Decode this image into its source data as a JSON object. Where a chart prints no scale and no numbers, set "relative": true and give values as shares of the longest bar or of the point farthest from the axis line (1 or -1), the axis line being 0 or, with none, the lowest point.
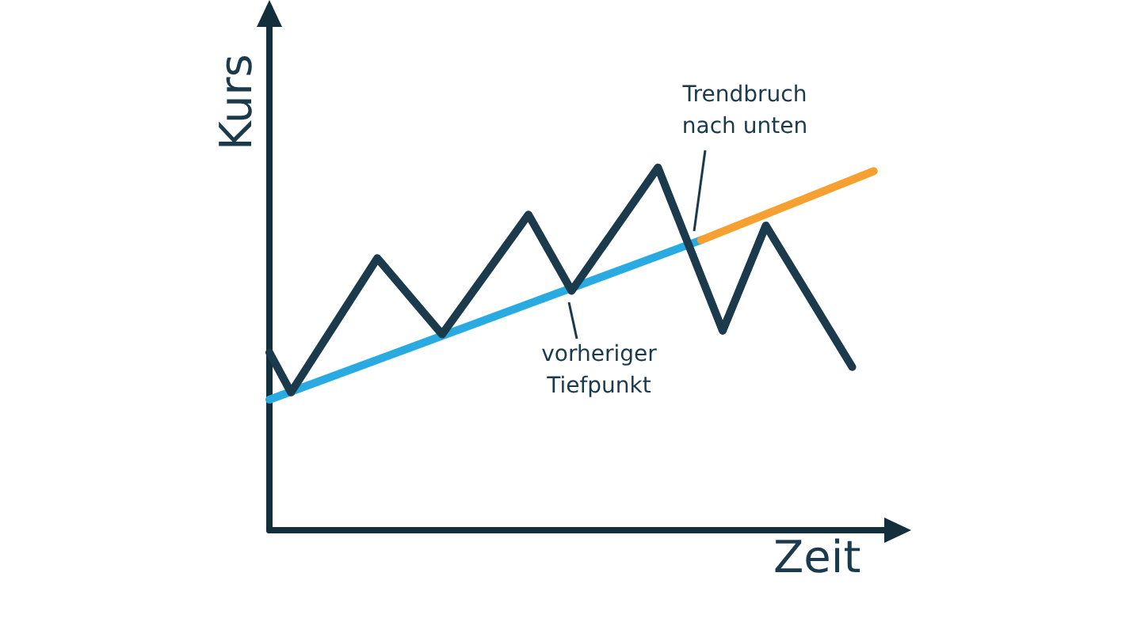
{
  "chart_data": {
    "type": "line",
    "relative": true,
    "xlabel": "Zeit",
    "ylabel": "Kurs",
    "grid": false,
    "marker": "none",
    "line_style": "solid",
    "categories": [
      null,
      null,
      null,
      null,
      null,
      null,
      null,
      null,
      null,
      null,
      null,
      null,
      null,
      null,
      null,
      null,
      null,
      null,
      null,
      null,
      null,
      null,
      null,
      null,
      null,
      null,
      null,
      null,
      null,
      null
    ],
    "series": [
      {
        "color": "#29abe2",
        "values": [
          0.36,
          null,
          null,
          null,
          null,
          null,
          null,
          null,
          null,
          null,
          null,
          null,
          null,
          null,
          null,
          null,
          null,
          null,
          null,
          null,
          0.8,
          null,
          null,
          null,
          null,
          null,
          null,
          null,
          null,
          null
        ]
      },
      {
        "color": "#f5a031",
        "values": [
          null,
          null,
          null,
          null,
          null,
          null,
          null,
          null,
          null,
          null,
          null,
          null,
          null,
          null,
          null,
          null,
          null,
          null,
          null,
          null,
          0.8,
          null,
          null,
          null,
          null,
          null,
          null,
          null,
          0.99,
          null
        ]
      },
      {
        "color": "#1b3a4b",
        "values": [
          0.49,
          0.38,
          null,
          null,
          null,
          0.75,
          null,
          null,
          0.54,
          null,
          null,
          null,
          0.87,
          null,
          0.66,
          null,
          null,
          null,
          1,
          null,
          null,
          0.55,
          null,
          0.84,
          null,
          null,
          null,
          0.45,
          null,
          null
        ]
      }
    ],
    "annotations": [
      "Trendbruch\nnach unten",
      "vorheriger\nTiefpunkt"
    ]
  }
}
